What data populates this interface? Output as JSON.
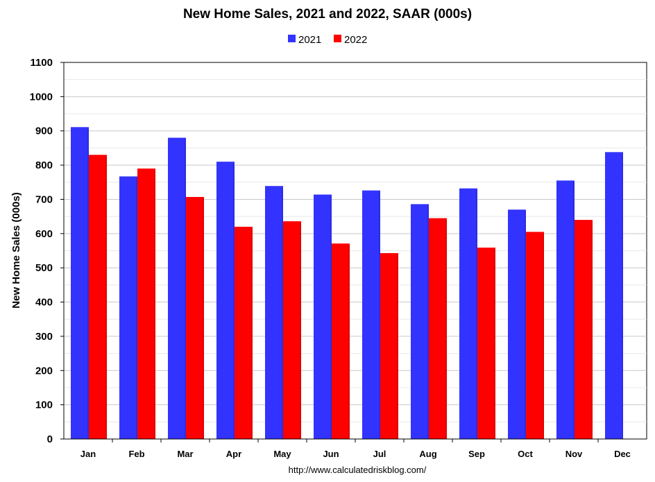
{
  "chart_data": {
    "type": "bar",
    "title": "New Home Sales,  2021 and 2022, SAAR (000s)",
    "ylabel": "New Home Sales (000s)",
    "xlabel": "",
    "categories": [
      "Jan",
      "Feb",
      "Mar",
      "Apr",
      "May",
      "Jun",
      "Jul",
      "Aug",
      "Sep",
      "Oct",
      "Nov",
      "Dec"
    ],
    "series": [
      {
        "name": "2021",
        "color": "#3333ff",
        "values": [
          911,
          767,
          880,
          810,
          739,
          714,
          726,
          686,
          732,
          670,
          755,
          838
        ]
      },
      {
        "name": "2022",
        "color": "#ff0000",
        "values": [
          830,
          790,
          707,
          620,
          636,
          571,
          543,
          645,
          559,
          605,
          640,
          null
        ]
      }
    ],
    "ylim": [
      0,
      1100
    ],
    "yticks": [
      0,
      100,
      200,
      300,
      400,
      500,
      600,
      700,
      800,
      900,
      1000,
      1100
    ],
    "grid": true,
    "legend_position": "top-center",
    "source_note": "http://www.calculatedriskblog.com/"
  }
}
